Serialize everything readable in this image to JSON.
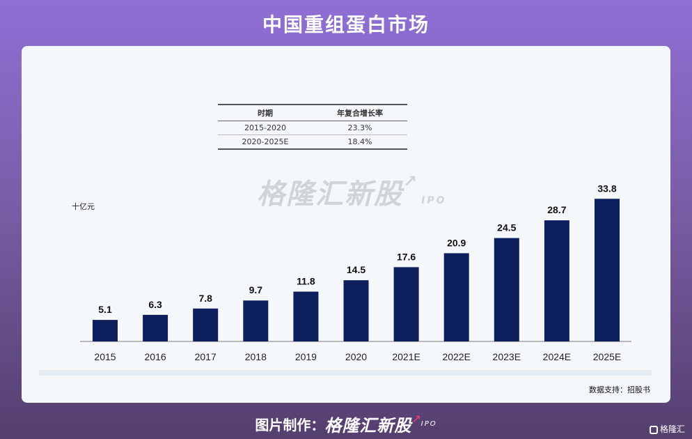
{
  "header": {
    "title": "中国重组蛋白市场"
  },
  "cagr_table": {
    "headers": [
      "时期",
      "年复合增长率"
    ],
    "rows": [
      [
        "2015-2020",
        "23.3%"
      ],
      [
        "2020-2025E",
        "18.4%"
      ]
    ]
  },
  "watermark": {
    "brand": "格隆汇新股",
    "ipo": "IPO"
  },
  "chart_data": {
    "type": "bar",
    "categories": [
      "2015",
      "2016",
      "2017",
      "2018",
      "2019",
      "2020",
      "2021E",
      "2022E",
      "2023E",
      "2024E",
      "2025E"
    ],
    "values": [
      5.1,
      6.3,
      7.8,
      9.7,
      11.8,
      14.5,
      17.6,
      20.9,
      24.5,
      28.7,
      33.8
    ],
    "value_labels": [
      "5.1",
      "6.3",
      "7.8",
      "9.7",
      "11.8",
      "14.5",
      "17.6",
      "20.9",
      "24.5",
      "28.7",
      "33.8"
    ],
    "unit": "十亿元",
    "ylim": [
      0,
      35
    ],
    "bar_color": "#0d1f5c",
    "grid": false,
    "legend": "none"
  },
  "source": "数据支持：招股书",
  "footer": {
    "prefix": "图片制作：",
    "brand": "格隆汇新股",
    "ipo": "IPO",
    "corner_logo": "格隆汇"
  },
  "colors": {
    "accent_pink": "#ff3b7f",
    "background_top": "#8f6fd6",
    "background_bottom": "#553f6e"
  }
}
